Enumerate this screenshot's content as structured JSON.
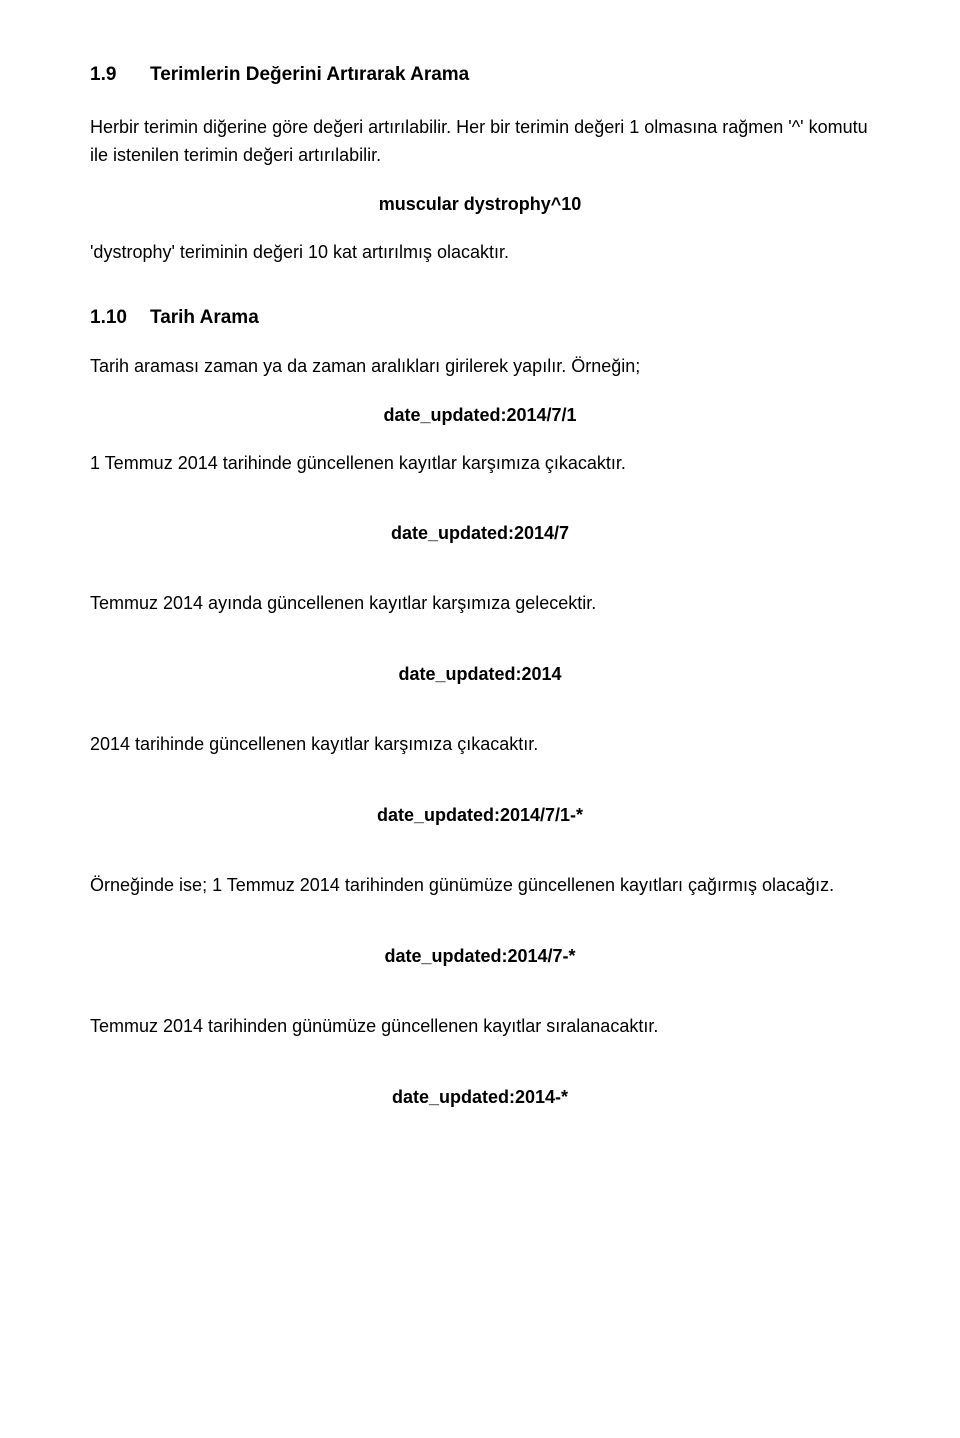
{
  "section1": {
    "num": "1.9",
    "title": "Terimlerin Değerini Artırarak Arama"
  },
  "p1": "Herbir terimin diğerine göre değeri artırılabilir. Her bir terimin değeri 1 olmasına rağmen '^' komutu ile istenilen terimin değeri artırılabilir.",
  "c1": "muscular dystrophy^10",
  "p2": "'dystrophy' teriminin değeri 10 kat artırılmış olacaktır.",
  "section2": {
    "num": "1.10",
    "title": "Tarih Arama"
  },
  "p3": "Tarih araması zaman ya da zaman aralıkları girilerek yapılır. Örneğin;",
  "c2": "date_updated:2014/7/1",
  "p4": "1 Temmuz 2014 tarihinde güncellenen kayıtlar karşımıza çıkacaktır.",
  "c3": "date_updated:2014/7",
  "p5": "Temmuz 2014 ayında güncellenen kayıtlar karşımıza gelecektir.",
  "c4": "date_updated:2014",
  "p6": "2014 tarihinde güncellenen kayıtlar karşımıza çıkacaktır.",
  "c5": "date_updated:2014/7/1-*",
  "p7": "Örneğinde ise; 1 Temmuz 2014 tarihinden günümüze güncellenen kayıtları çağırmış olacağız.",
  "c6": "date_updated:2014/7-*",
  "p8": "Temmuz 2014 tarihinden günümüze güncellenen kayıtlar sıralanacaktır.",
  "c7": "date_updated:2014-*"
}
